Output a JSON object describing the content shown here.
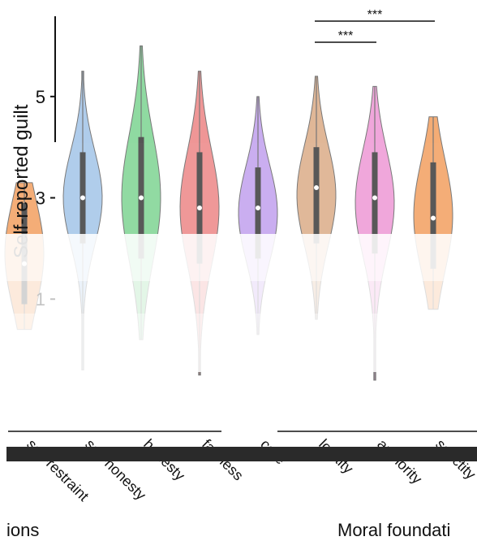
{
  "chart_data": {
    "type": "violin",
    "ylabel": "Self-reported guilt",
    "yticks": [
      1,
      3,
      5
    ],
    "ylim": [
      -0.6,
      6.2
    ],
    "categories": [
      {
        "label": "self-restraint",
        "group": 0,
        "color": "#f4a66a",
        "median": 1.7,
        "q1": 0.9,
        "q3": 2.9,
        "min": 0.4,
        "max": 3.3
      },
      {
        "label": "self-honesty",
        "group": 0,
        "color": "#a9c8ea",
        "median": 3.0,
        "q1": 2.1,
        "q3": 3.9,
        "min": -0.4,
        "max": 5.5
      },
      {
        "label": "honesty",
        "group": 0,
        "color": "#86d79a",
        "median": 3.0,
        "q1": 1.8,
        "q3": 4.2,
        "min": 0.2,
        "max": 6.0
      },
      {
        "label": "fairness",
        "group": 0,
        "color": "#ee8e8e",
        "median": 2.8,
        "q1": 1.7,
        "q3": 3.9,
        "min": -0.5,
        "max": 5.5
      },
      {
        "label": "care",
        "group": 1,
        "color": "#c5a7ef",
        "median": 2.8,
        "q1": 1.8,
        "q3": 3.6,
        "min": 0.3,
        "max": 5.0
      },
      {
        "label": "loyalty",
        "group": 1,
        "color": "#deb18f",
        "median": 3.2,
        "q1": 2.1,
        "q3": 4.0,
        "min": 0.6,
        "max": 5.4
      },
      {
        "label": "authority",
        "group": 1,
        "color": "#ef9fd9",
        "median": 3.0,
        "q1": 1.9,
        "q3": 3.9,
        "min": -0.6,
        "max": 5.2
      },
      {
        "label": "sanctity",
        "group": 1,
        "color": "#f4a66a",
        "median": 2.6,
        "q1": 1.6,
        "q3": 3.7,
        "min": 0.8,
        "max": 4.6
      }
    ],
    "groups": [
      {
        "label": "ions"
      },
      {
        "label": "Moral foundati"
      }
    ],
    "significance": [
      {
        "from": 5,
        "to": 6,
        "label": "***"
      },
      {
        "from": 5,
        "to": 7,
        "label": "***"
      }
    ],
    "grid": false
  }
}
